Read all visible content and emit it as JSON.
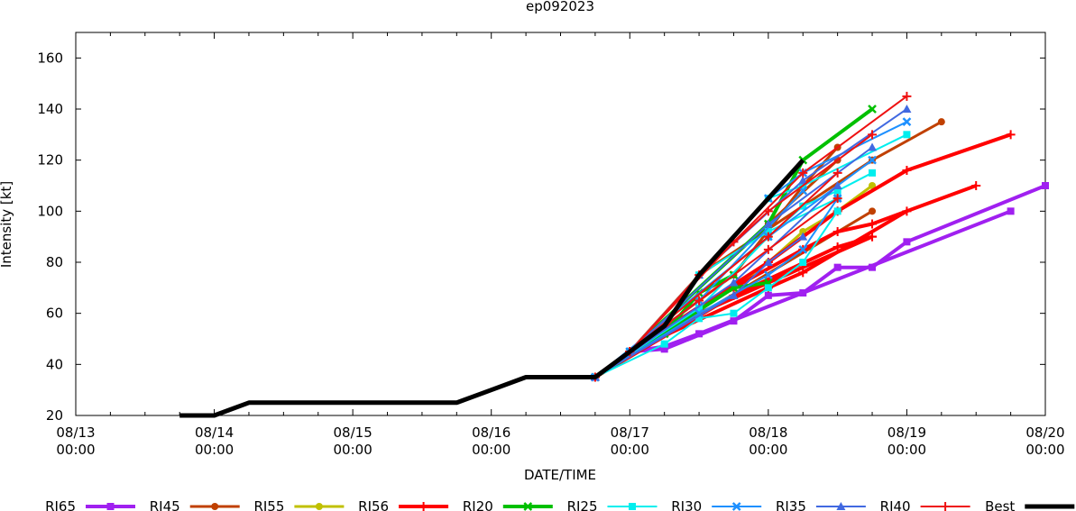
{
  "chart_data": {
    "type": "line",
    "title": "ep092023",
    "xlabel": "DATE/TIME",
    "ylabel": "Intensity [kt]",
    "x_unit": "hours since 08/13 00:00",
    "xlim": [
      0,
      168
    ],
    "ylim": [
      20,
      170
    ],
    "y_ticks": [
      20,
      40,
      60,
      80,
      100,
      120,
      140,
      160
    ],
    "x_ticks": [
      {
        "x": 0,
        "date": "08/13",
        "time": "00:00"
      },
      {
        "x": 24,
        "date": "08/14",
        "time": "00:00"
      },
      {
        "x": 48,
        "date": "08/15",
        "time": "00:00"
      },
      {
        "x": 72,
        "date": "08/16",
        "time": "00:00"
      },
      {
        "x": 96,
        "date": "08/17",
        "time": "00:00"
      },
      {
        "x": 120,
        "date": "08/18",
        "time": "00:00"
      },
      {
        "x": 144,
        "date": "08/19",
        "time": "00:00"
      },
      {
        "x": 168,
        "date": "08/20",
        "time": "00:00"
      }
    ],
    "series": [
      {
        "name": "RI65",
        "color": "#a020f0",
        "width": 4,
        "marker": "square",
        "lines": [
          [
            [
              90,
              35
            ],
            [
              96,
              45
            ],
            [
              102,
              46
            ],
            [
              114,
              57
            ],
            [
              120,
              67
            ],
            [
              126,
              68
            ],
            [
              132,
              78
            ],
            [
              138,
              78
            ],
            [
              144,
              88
            ],
            [
              168,
              110
            ]
          ],
          [
            [
              96,
              45
            ],
            [
              102,
              47
            ],
            [
              108,
              52
            ],
            [
              162,
              100
            ]
          ]
        ]
      },
      {
        "name": "RI45",
        "color": "#c04000",
        "width": 3,
        "marker": "circle",
        "lines": [
          [
            [
              90,
              35
            ],
            [
              114,
              75
            ],
            [
              126,
              110
            ],
            [
              132,
              125
            ]
          ],
          [
            [
              90,
              35
            ],
            [
              138,
              100
            ]
          ],
          [
            [
              96,
              45
            ],
            [
              108,
              75
            ],
            [
              138,
              120
            ],
            [
              150,
              135
            ]
          ],
          [
            [
              96,
              45
            ],
            [
              120,
              95
            ],
            [
              132,
              120
            ]
          ]
        ]
      },
      {
        "name": "RI55",
        "color": "#c0c000",
        "width": 3,
        "marker": "circle",
        "lines": [
          [
            [
              90,
              35
            ],
            [
              120,
              80
            ],
            [
              126,
              92
            ],
            [
              132,
              100
            ]
          ],
          [
            [
              90,
              35
            ],
            [
              114,
              70
            ],
            [
              138,
              110
            ]
          ]
        ]
      },
      {
        "name": "RI56",
        "color": "#ff0000",
        "width": 4,
        "marker": "plus",
        "lines": [
          [
            [
              90,
              35
            ],
            [
              114,
              67
            ],
            [
              132,
              86
            ],
            [
              138,
              90
            ]
          ],
          [
            [
              96,
              45
            ],
            [
              120,
              70
            ],
            [
              126,
              76
            ],
            [
              144,
              100
            ]
          ],
          [
            [
              96,
              45
            ],
            [
              114,
              70
            ],
            [
              126,
              85
            ],
            [
              132,
              92
            ],
            [
              138,
              95
            ],
            [
              156,
              110
            ]
          ],
          [
            [
              96,
              45
            ],
            [
              120,
              80
            ],
            [
              132,
              100
            ],
            [
              144,
              116
            ],
            [
              162,
              130
            ]
          ],
          [
            [
              90,
              35
            ],
            [
              108,
              60
            ],
            [
              138,
              90
            ]
          ]
        ]
      },
      {
        "name": "RI20",
        "color": "#00c000",
        "width": 4,
        "marker": "x",
        "lines": [
          [
            [
              90,
              35
            ],
            [
              114,
              70
            ],
            [
              120,
              72
            ]
          ],
          [
            [
              90,
              35
            ],
            [
              102,
              52
            ],
            [
              108,
              68
            ],
            [
              114,
              75
            ]
          ],
          [
            [
              96,
              45
            ],
            [
              120,
              95
            ],
            [
              126,
              120
            ],
            [
              138,
              140
            ]
          ]
        ]
      },
      {
        "name": "RI25",
        "color": "#00eeee",
        "width": 2,
        "marker": "square",
        "lines": [
          [
            [
              90,
              35
            ],
            [
              102,
              48
            ],
            [
              108,
              58
            ],
            [
              114,
              60
            ],
            [
              120,
              70
            ],
            [
              126,
              80
            ],
            [
              132,
              100
            ]
          ],
          [
            [
              90,
              35
            ],
            [
              108,
              62
            ],
            [
              120,
              90
            ],
            [
              126,
              102
            ],
            [
              132,
              108
            ],
            [
              138,
              115
            ]
          ],
          [
            [
              96,
              45
            ],
            [
              108,
              75
            ],
            [
              120,
              92
            ],
            [
              132,
              105
            ]
          ],
          [
            [
              96,
              45
            ],
            [
              120,
              105
            ],
            [
              126,
              110
            ],
            [
              144,
              130
            ]
          ]
        ]
      },
      {
        "name": "RI30",
        "color": "#1e90ff",
        "width": 2,
        "marker": "x",
        "lines": [
          [
            [
              90,
              35
            ],
            [
              108,
              60
            ],
            [
              120,
              75
            ],
            [
              126,
              85
            ],
            [
              132,
              105
            ]
          ],
          [
            [
              90,
              35
            ],
            [
              120,
              90
            ],
            [
              138,
              120
            ]
          ],
          [
            [
              96,
              45
            ],
            [
              120,
              105
            ],
            [
              126,
              115
            ],
            [
              144,
              135
            ]
          ],
          [
            [
              96,
              45
            ],
            [
              108,
              65
            ],
            [
              126,
              108
            ]
          ]
        ]
      },
      {
        "name": "RI35",
        "color": "#4169e1",
        "width": 2,
        "marker": "triangle",
        "lines": [
          [
            [
              90,
              35
            ],
            [
              114,
              67
            ],
            [
              120,
              80
            ],
            [
              126,
              90
            ]
          ],
          [
            [
              90,
              35
            ],
            [
              114,
              72
            ],
            [
              132,
              110
            ]
          ],
          [
            [
              96,
              45
            ],
            [
              120,
              95
            ],
            [
              138,
              125
            ]
          ],
          [
            [
              96,
              45
            ],
            [
              108,
              75
            ],
            [
              126,
              112
            ],
            [
              144,
              140
            ]
          ]
        ]
      },
      {
        "name": "RI40",
        "color": "#ee1111",
        "width": 2,
        "marker": "plus",
        "lines": [
          [
            [
              90,
              35
            ],
            [
              108,
              65
            ],
            [
              120,
              85
            ],
            [
              132,
              105
            ]
          ],
          [
            [
              96,
              45
            ],
            [
              120,
              90
            ],
            [
              132,
              115
            ]
          ],
          [
            [
              96,
              45
            ],
            [
              108,
              75
            ],
            [
              120,
              100
            ],
            [
              138,
              130
            ]
          ],
          [
            [
              96,
              45
            ],
            [
              114,
              88
            ],
            [
              126,
              115
            ],
            [
              144,
              145
            ]
          ]
        ]
      },
      {
        "name": "Best",
        "color": "#000000",
        "width": 5,
        "marker": "none",
        "lines": [
          [
            [
              18,
              20
            ],
            [
              24,
              20
            ],
            [
              30,
              25
            ],
            [
              36,
              25
            ],
            [
              48,
              25
            ],
            [
              60,
              25
            ],
            [
              66,
              25
            ],
            [
              72,
              30
            ],
            [
              78,
              35
            ],
            [
              84,
              35
            ],
            [
              90,
              35
            ],
            [
              96,
              45
            ],
            [
              102,
              55
            ],
            [
              108,
              75
            ],
            [
              114,
              90
            ],
            [
              120,
              105
            ],
            [
              126,
              120
            ]
          ]
        ]
      }
    ],
    "legend_position": "bottom"
  }
}
